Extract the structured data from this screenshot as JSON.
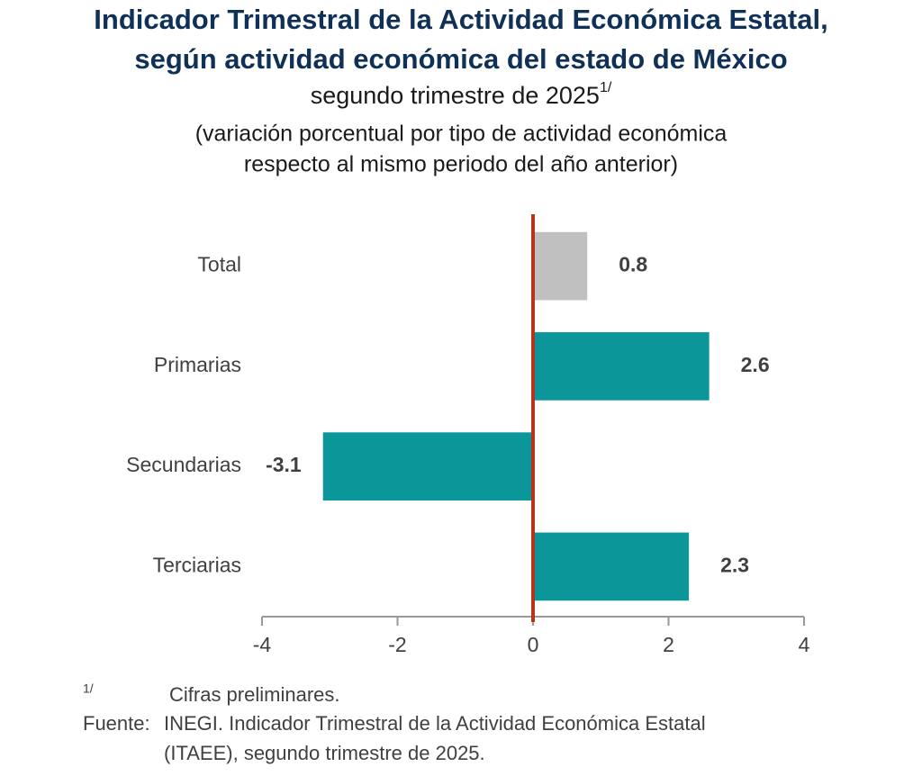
{
  "chart_data": {
    "type": "hbar",
    "title": [
      "Indicador Trimestral de la Actividad Económica Estatal,",
      "según actividad económica del estado de México"
    ],
    "subtitle": {
      "text": "segundo trimestre de 2025",
      "note": "1/"
    },
    "description": [
      "(variación porcentual por tipo de actividad económica",
      "respecto al mismo periodo del año anterior)"
    ],
    "categories": [
      "Total",
      "Primarias",
      "Secundarias",
      "Terciarias"
    ],
    "values": [
      0.8,
      2.6,
      -3.1,
      2.3
    ],
    "colors": [
      "#c0c0c0",
      "#0b9799",
      "#0b9799",
      "#0b9799"
    ],
    "zero_line_color": "#b5341c",
    "xlim": [
      -4,
      4
    ],
    "xticks": [
      -4,
      -2,
      0,
      2,
      4
    ],
    "grid": false
  },
  "footnotes": {
    "note_marker": "1/",
    "note_text": "Cifras preliminares.",
    "source_label": "Fuente:",
    "source_lines": [
      "INEGI. Indicador Trimestral de la Actividad Económica Estatal",
      "(ITAEE), segundo trimestre de 2025."
    ]
  }
}
